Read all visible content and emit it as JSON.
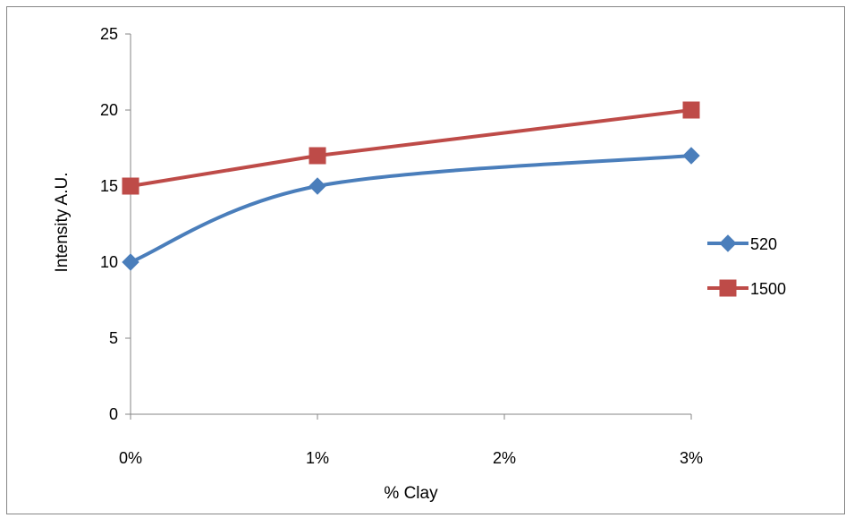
{
  "chart_data": {
    "type": "line",
    "title": "",
    "xlabel": "% Clay",
    "ylabel": "Intensity  A.U.",
    "categories": [
      "0%",
      "1%",
      "2%",
      "3%"
    ],
    "x": [
      0,
      1,
      3
    ],
    "x_tick_values": [
      0,
      1,
      2,
      3
    ],
    "ylim": [
      0,
      25
    ],
    "y_ticks": [
      0,
      5,
      10,
      15,
      20,
      25
    ],
    "grid": false,
    "legend_position": "right",
    "series": [
      {
        "name": "520",
        "x": [
          0,
          1,
          3
        ],
        "values": [
          10,
          15,
          17
        ],
        "color": "#4a7ebb",
        "marker": "diamond",
        "smoothed": true
      },
      {
        "name": "1500",
        "x": [
          0,
          1,
          3
        ],
        "values": [
          15,
          17,
          20
        ],
        "color": "#be4b48",
        "marker": "square",
        "smoothed": false
      }
    ]
  }
}
